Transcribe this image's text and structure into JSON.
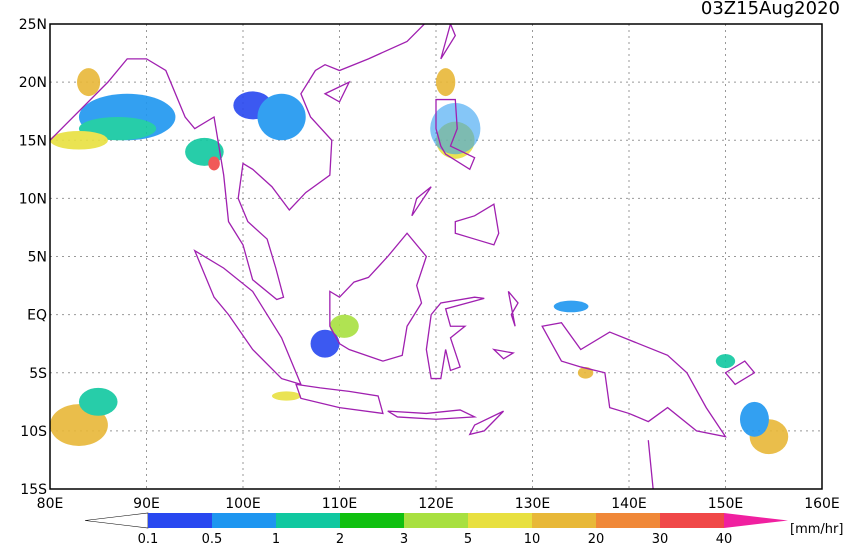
{
  "map": {
    "title": "03Z15Aug2020",
    "lat_labels": [
      "25N",
      "20N",
      "15N",
      "10N",
      "5N",
      "EQ",
      "5S",
      "10S",
      "15S"
    ],
    "lon_labels": [
      "80E",
      "90E",
      "100E",
      "110E",
      "120E",
      "130E",
      "140E",
      "150E",
      "160E"
    ],
    "colorbar": {
      "levels": [
        0.1,
        0.5,
        1,
        2,
        3,
        5,
        10,
        20,
        30,
        40
      ],
      "colors": [
        "#ffffff",
        "#2848f0",
        "#1e96f0",
        "#10c8a0",
        "#10c010",
        "#a8e040",
        "#e8e040",
        "#e8b838",
        "#f08838",
        "#f04848",
        "#f020a0"
      ],
      "unit": "[mm/hr]"
    }
  }
}
